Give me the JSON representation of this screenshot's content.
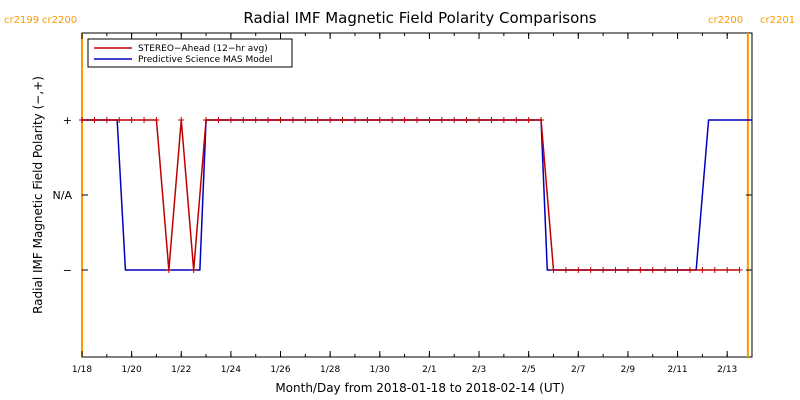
{
  "chart_data": {
    "type": "line",
    "title": "Radial IMF Magnetic Field Polarity Comparisons",
    "xlabel": "Month/Day from 2018-01-18 to 2018-02-14 (UT)",
    "ylabel": "Radial IMF Magnetic Field Polarity (−,+)",
    "xlim": [
      "2018-01-18",
      "2018-02-14"
    ],
    "x_ticks": [
      "1/18",
      "1/20",
      "1/22",
      "1/24",
      "1/26",
      "1/28",
      "1/30",
      "2/1",
      "2/3",
      "2/5",
      "2/7",
      "2/9",
      "2/11",
      "2/13"
    ],
    "y_ticks": [
      "−",
      "N/A",
      "+"
    ],
    "carrington_markers": [
      {
        "date": "2018-01-18 00:00",
        "labels": [
          "cr2199",
          "cr2200"
        ],
        "side": "left"
      },
      {
        "date": "2018-02-13 20:00",
        "labels": [
          "cr2200",
          "cr2201"
        ],
        "side": "right"
      }
    ],
    "legend_position": "top-left",
    "series": [
      {
        "name": "STEREO−Ahead (12−hr avg)",
        "color": "#c00000",
        "markers": "+",
        "x": [
          "2018-01-18 00:00",
          "2018-01-18 12:00",
          "2018-01-19 00:00",
          "2018-01-19 12:00",
          "2018-01-20 00:00",
          "2018-01-20 12:00",
          "2018-01-21 00:00",
          "2018-01-21 12:00",
          "2018-01-22 00:00",
          "2018-01-22 12:00",
          "2018-01-23 00:00",
          "2018-01-23 12:00",
          "2018-01-24 00:00",
          "2018-01-24 12:00",
          "2018-01-25 00:00",
          "2018-01-25 12:00",
          "2018-01-26 00:00",
          "2018-01-26 12:00",
          "2018-01-27 00:00",
          "2018-01-27 12:00",
          "2018-01-28 00:00",
          "2018-01-28 12:00",
          "2018-01-29 00:00",
          "2018-01-29 12:00",
          "2018-01-30 00:00",
          "2018-01-30 12:00",
          "2018-01-31 00:00",
          "2018-01-31 12:00",
          "2018-02-01 00:00",
          "2018-02-01 12:00",
          "2018-02-02 00:00",
          "2018-02-02 12:00",
          "2018-02-03 00:00",
          "2018-02-03 12:00",
          "2018-02-04 00:00",
          "2018-02-04 12:00",
          "2018-02-05 00:00",
          "2018-02-05 12:00",
          "2018-02-06 00:00",
          "2018-02-06 12:00",
          "2018-02-07 00:00",
          "2018-02-07 12:00",
          "2018-02-08 00:00",
          "2018-02-08 12:00",
          "2018-02-09 00:00",
          "2018-02-09 12:00",
          "2018-02-10 00:00",
          "2018-02-10 12:00",
          "2018-02-11 00:00",
          "2018-02-11 12:00",
          "2018-02-12 00:00",
          "2018-02-12 12:00",
          "2018-02-13 00:00",
          "2018-02-13 12:00"
        ],
        "y": [
          "+",
          "+",
          "+",
          "+",
          "+",
          "+",
          "+",
          "−",
          "+",
          "−",
          "+",
          "+",
          "+",
          "+",
          "+",
          "+",
          "+",
          "+",
          "+",
          "+",
          "+",
          "+",
          "+",
          "+",
          "+",
          "+",
          "+",
          "+",
          "+",
          "+",
          "+",
          "+",
          "+",
          "+",
          "+",
          "+",
          "+",
          "+",
          "−",
          "−",
          "−",
          "−",
          "−",
          "−",
          "−",
          "−",
          "−",
          "−",
          "−",
          "−",
          "−",
          "−",
          "−",
          "−"
        ]
      },
      {
        "name": "Predictive Science MAS Model",
        "color": "#0000c0",
        "x": [
          "2018-01-18 00:00",
          "2018-01-19 10:00",
          "2018-01-19 18:00",
          "2018-01-22 18:00",
          "2018-01-23 00:00",
          "2018-02-05 12:00",
          "2018-02-05 18:00",
          "2018-02-11 18:00",
          "2018-02-12 06:00",
          "2018-02-14 00:00"
        ],
        "y": [
          "+",
          "+",
          "−",
          "−",
          "+",
          "+",
          "−",
          "−",
          "+",
          "+"
        ]
      }
    ]
  }
}
